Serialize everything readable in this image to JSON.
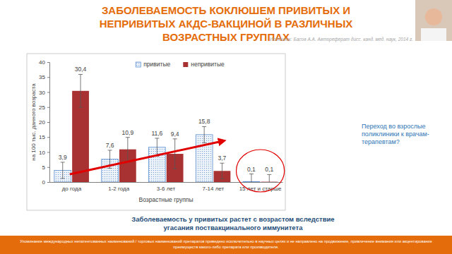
{
  "chart_data": {
    "type": "bar",
    "title": "ЗАБОЛЕВАЕМОСТЬ КОКЛЮШЕМ ПРИВИТЫХ И НЕПРИВИТЫХ АКДС-ВАКЦИНОЙ В РАЗЛИЧНЫХ ВОЗРАСТНЫХ ГРУППАХ",
    "subtitle": "Источник: Басов А.А. Автореферат дисс. канд. мед. наук, 2014 г.",
    "x_label": "Возрастные группы",
    "y_label": "на 100 тыс. данного возраста",
    "categories": [
      "до года",
      "1-2 года",
      "3-6 лет",
      "7-14 лет",
      "15 лет и старше"
    ],
    "series": [
      {
        "name": "привитые",
        "color": "#5b8fd0",
        "values": [
          3.9,
          7.6,
          11.6,
          15.8,
          0.1
        ],
        "value_labels": [
          "3,9",
          "7,6",
          "11,6",
          "15,8",
          "0,1"
        ],
        "errors": [
          2.7,
          3.0,
          3.0,
          2.7,
          2.6
        ]
      },
      {
        "name": "непривитые",
        "color": "#a83232",
        "values": [
          30.4,
          10.9,
          9.4,
          3.7,
          0.1
        ],
        "value_labels": [
          "30,4",
          "10,9",
          "9,4",
          "3,7",
          "0,1"
        ],
        "errors": [
          5.5,
          4.0,
          5.0,
          2.6,
          2.4
        ]
      }
    ],
    "ylim": [
      0,
      40
    ],
    "yticks": [
      0,
      5,
      10,
      15,
      20,
      25,
      30,
      35,
      40
    ],
    "grid": false,
    "legend": "top",
    "data_labels": true,
    "annotations": [
      "Переход во взрослые поликлиники к врачам-терапевтам?",
      "Заболеваемость у привитых растет с возрастом вследствие угасания поствакцинального иммунитета",
      "Упоминание международных непатентованных наименований / торговых наименований препаратов приведено исключительно в научных целях и не направлено на продвижение, привлечение внимания или акцентирование преимуществ какого-либо препарата или производителя."
    ]
  }
}
